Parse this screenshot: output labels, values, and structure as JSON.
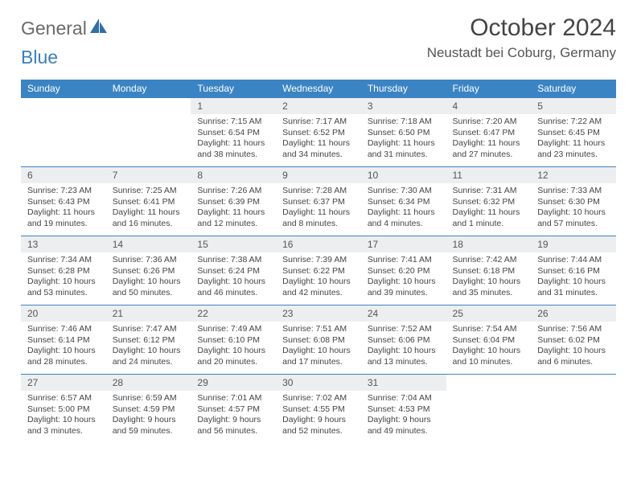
{
  "brand": {
    "part1": "General",
    "part2": "Blue"
  },
  "title": "October 2024",
  "location": "Neustadt bei Coburg, Germany",
  "colors": {
    "header_bg": "#3b84c4",
    "header_text": "#ffffff",
    "daynum_bg": "#eceef0",
    "border": "#3b84c4",
    "brand_gray": "#6a6a6a",
    "brand_blue": "#3a7fc0"
  },
  "weekdays": [
    "Sunday",
    "Monday",
    "Tuesday",
    "Wednesday",
    "Thursday",
    "Friday",
    "Saturday"
  ],
  "weeks": [
    [
      null,
      null,
      {
        "n": "1",
        "sr": "Sunrise: 7:15 AM",
        "ss": "Sunset: 6:54 PM",
        "dl": "Daylight: 11 hours and 38 minutes."
      },
      {
        "n": "2",
        "sr": "Sunrise: 7:17 AM",
        "ss": "Sunset: 6:52 PM",
        "dl": "Daylight: 11 hours and 34 minutes."
      },
      {
        "n": "3",
        "sr": "Sunrise: 7:18 AM",
        "ss": "Sunset: 6:50 PM",
        "dl": "Daylight: 11 hours and 31 minutes."
      },
      {
        "n": "4",
        "sr": "Sunrise: 7:20 AM",
        "ss": "Sunset: 6:47 PM",
        "dl": "Daylight: 11 hours and 27 minutes."
      },
      {
        "n": "5",
        "sr": "Sunrise: 7:22 AM",
        "ss": "Sunset: 6:45 PM",
        "dl": "Daylight: 11 hours and 23 minutes."
      }
    ],
    [
      {
        "n": "6",
        "sr": "Sunrise: 7:23 AM",
        "ss": "Sunset: 6:43 PM",
        "dl": "Daylight: 11 hours and 19 minutes."
      },
      {
        "n": "7",
        "sr": "Sunrise: 7:25 AM",
        "ss": "Sunset: 6:41 PM",
        "dl": "Daylight: 11 hours and 16 minutes."
      },
      {
        "n": "8",
        "sr": "Sunrise: 7:26 AM",
        "ss": "Sunset: 6:39 PM",
        "dl": "Daylight: 11 hours and 12 minutes."
      },
      {
        "n": "9",
        "sr": "Sunrise: 7:28 AM",
        "ss": "Sunset: 6:37 PM",
        "dl": "Daylight: 11 hours and 8 minutes."
      },
      {
        "n": "10",
        "sr": "Sunrise: 7:30 AM",
        "ss": "Sunset: 6:34 PM",
        "dl": "Daylight: 11 hours and 4 minutes."
      },
      {
        "n": "11",
        "sr": "Sunrise: 7:31 AM",
        "ss": "Sunset: 6:32 PM",
        "dl": "Daylight: 11 hours and 1 minute."
      },
      {
        "n": "12",
        "sr": "Sunrise: 7:33 AM",
        "ss": "Sunset: 6:30 PM",
        "dl": "Daylight: 10 hours and 57 minutes."
      }
    ],
    [
      {
        "n": "13",
        "sr": "Sunrise: 7:34 AM",
        "ss": "Sunset: 6:28 PM",
        "dl": "Daylight: 10 hours and 53 minutes."
      },
      {
        "n": "14",
        "sr": "Sunrise: 7:36 AM",
        "ss": "Sunset: 6:26 PM",
        "dl": "Daylight: 10 hours and 50 minutes."
      },
      {
        "n": "15",
        "sr": "Sunrise: 7:38 AM",
        "ss": "Sunset: 6:24 PM",
        "dl": "Daylight: 10 hours and 46 minutes."
      },
      {
        "n": "16",
        "sr": "Sunrise: 7:39 AM",
        "ss": "Sunset: 6:22 PM",
        "dl": "Daylight: 10 hours and 42 minutes."
      },
      {
        "n": "17",
        "sr": "Sunrise: 7:41 AM",
        "ss": "Sunset: 6:20 PM",
        "dl": "Daylight: 10 hours and 39 minutes."
      },
      {
        "n": "18",
        "sr": "Sunrise: 7:42 AM",
        "ss": "Sunset: 6:18 PM",
        "dl": "Daylight: 10 hours and 35 minutes."
      },
      {
        "n": "19",
        "sr": "Sunrise: 7:44 AM",
        "ss": "Sunset: 6:16 PM",
        "dl": "Daylight: 10 hours and 31 minutes."
      }
    ],
    [
      {
        "n": "20",
        "sr": "Sunrise: 7:46 AM",
        "ss": "Sunset: 6:14 PM",
        "dl": "Daylight: 10 hours and 28 minutes."
      },
      {
        "n": "21",
        "sr": "Sunrise: 7:47 AM",
        "ss": "Sunset: 6:12 PM",
        "dl": "Daylight: 10 hours and 24 minutes."
      },
      {
        "n": "22",
        "sr": "Sunrise: 7:49 AM",
        "ss": "Sunset: 6:10 PM",
        "dl": "Daylight: 10 hours and 20 minutes."
      },
      {
        "n": "23",
        "sr": "Sunrise: 7:51 AM",
        "ss": "Sunset: 6:08 PM",
        "dl": "Daylight: 10 hours and 17 minutes."
      },
      {
        "n": "24",
        "sr": "Sunrise: 7:52 AM",
        "ss": "Sunset: 6:06 PM",
        "dl": "Daylight: 10 hours and 13 minutes."
      },
      {
        "n": "25",
        "sr": "Sunrise: 7:54 AM",
        "ss": "Sunset: 6:04 PM",
        "dl": "Daylight: 10 hours and 10 minutes."
      },
      {
        "n": "26",
        "sr": "Sunrise: 7:56 AM",
        "ss": "Sunset: 6:02 PM",
        "dl": "Daylight: 10 hours and 6 minutes."
      }
    ],
    [
      {
        "n": "27",
        "sr": "Sunrise: 6:57 AM",
        "ss": "Sunset: 5:00 PM",
        "dl": "Daylight: 10 hours and 3 minutes."
      },
      {
        "n": "28",
        "sr": "Sunrise: 6:59 AM",
        "ss": "Sunset: 4:59 PM",
        "dl": "Daylight: 9 hours and 59 minutes."
      },
      {
        "n": "29",
        "sr": "Sunrise: 7:01 AM",
        "ss": "Sunset: 4:57 PM",
        "dl": "Daylight: 9 hours and 56 minutes."
      },
      {
        "n": "30",
        "sr": "Sunrise: 7:02 AM",
        "ss": "Sunset: 4:55 PM",
        "dl": "Daylight: 9 hours and 52 minutes."
      },
      {
        "n": "31",
        "sr": "Sunrise: 7:04 AM",
        "ss": "Sunset: 4:53 PM",
        "dl": "Daylight: 9 hours and 49 minutes."
      },
      null,
      null
    ]
  ]
}
